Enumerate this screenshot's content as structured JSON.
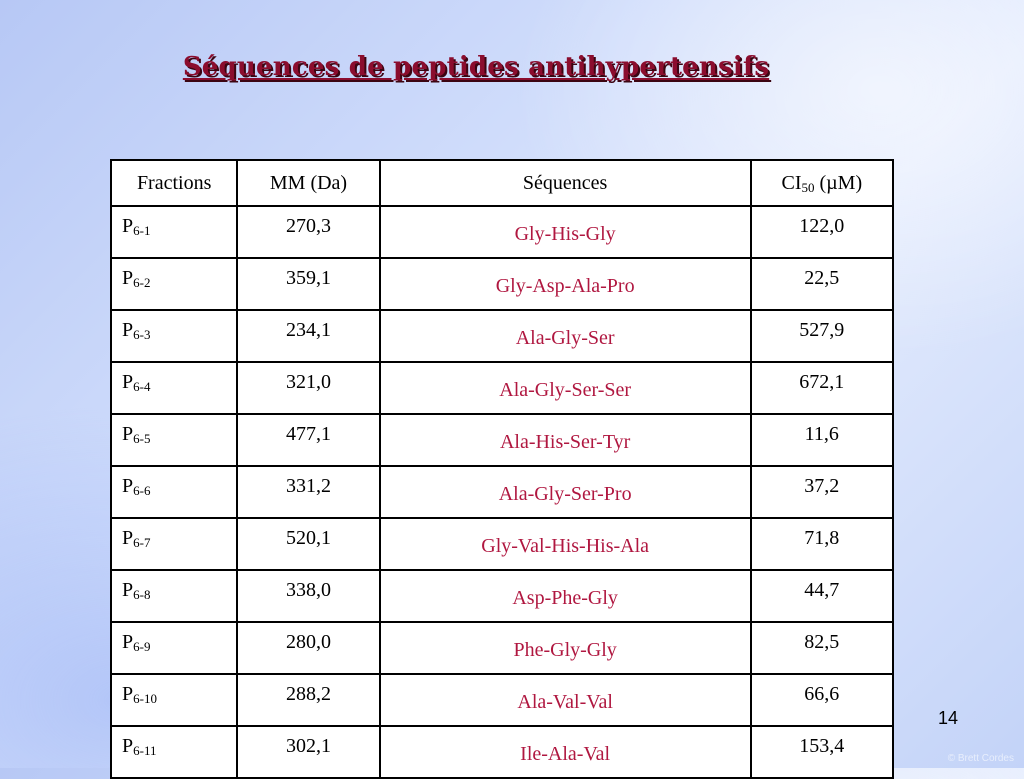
{
  "slide": {
    "title": "Séquences de peptides antihypertensifs",
    "page_number": "14",
    "watermark": "© Brett Cordes"
  },
  "table": {
    "headers": {
      "fractions": "Fractions",
      "mm": "MM (Da)",
      "sequences": "Séquences",
      "ci_prefix": "CI",
      "ci_sub": "50",
      "ci_suffix": " (µM)"
    },
    "rows": [
      {
        "prefix": "P",
        "sub": "6-1",
        "mm": "270,3",
        "sequence": "Gly-His-Gly",
        "ci": "122,0"
      },
      {
        "prefix": "P",
        "sub": "6-2",
        "mm": "359,1",
        "sequence": "Gly-Asp-Ala-Pro",
        "ci": "22,5"
      },
      {
        "prefix": "P",
        "sub": "6-3",
        "mm": "234,1",
        "sequence": "Ala-Gly-Ser",
        "ci": "527,9"
      },
      {
        "prefix": "P",
        "sub": "6-4",
        "mm": "321,0",
        "sequence": "Ala-Gly-Ser-Ser",
        "ci": "672,1"
      },
      {
        "prefix": "P",
        "sub": "6-5",
        "mm": "477,1",
        "sequence": "Ala-His-Ser-Tyr",
        "ci": "11,6"
      },
      {
        "prefix": "P",
        "sub": "6-6",
        "mm": "331,2",
        "sequence": "Ala-Gly-Ser-Pro",
        "ci": "37,2"
      },
      {
        "prefix": "P",
        "sub": "6-7",
        "mm": "520,1",
        "sequence": "Gly-Val-His-His-Ala",
        "ci": "71,8"
      },
      {
        "prefix": "P",
        "sub": "6-8",
        "mm": "338,0",
        "sequence": "Asp-Phe-Gly",
        "ci": "44,7"
      },
      {
        "prefix": "P",
        "sub": "6-9",
        "mm": "280,0",
        "sequence": "Phe-Gly-Gly",
        "ci": "82,5"
      },
      {
        "prefix": "P",
        "sub": "6-10",
        "mm": "288,2",
        "sequence": "Ala-Val-Val",
        "ci": "66,6"
      },
      {
        "prefix": "P",
        "sub": "6-11",
        "mm": "302,1",
        "sequence": "Ile-Ala-Val",
        "ci": "153,4"
      }
    ]
  },
  "colors": {
    "title": "#8b0d2e",
    "sequence_text": "#b01740",
    "background": "#cfdcfb"
  }
}
